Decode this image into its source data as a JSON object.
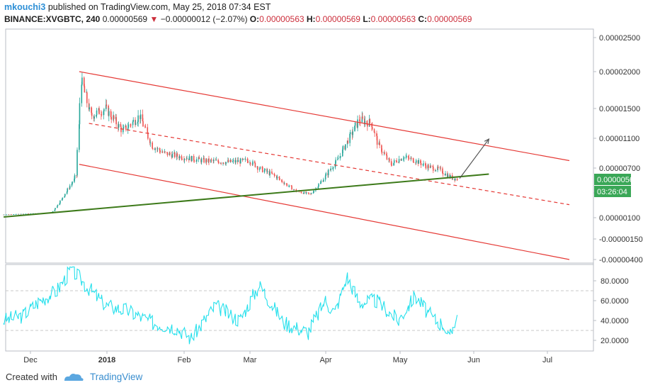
{
  "header": {
    "author": "mkouchi3",
    "published_text": "published on TradingView.com, May 25, 2018 07:34 EST",
    "symbol": "BINANCE:XVGBTC, 240",
    "last": "0.00000569",
    "change": "−0.00000012 (−2.07%)",
    "o_label": "O:",
    "o": "0.00000563",
    "h_label": "H:",
    "h": "0.00000569",
    "l_label": "L:",
    "l": "0.00000563",
    "c_label": "C:",
    "c": "0.00000569"
  },
  "footer": {
    "created_with": "Created with",
    "brand": "TradingView"
  },
  "colors": {
    "candle_up": "#26a69a",
    "candle_down": "#ef5350",
    "channel": "#e53935",
    "trendline": "#3d7a1a",
    "rsi": "#26e0ec",
    "price_badge": "#3aa757",
    "arrow": "#555555"
  },
  "chart_data": [
    {
      "type": "candlestick",
      "title": "BINANCE:XVGBTC, 240",
      "price_axis_labels": [
        "0.00002500",
        "0.00002000",
        "0.00001500",
        "0.00001100",
        "0.00000700",
        "0.0",
        "0.00000100",
        "-0.00000150",
        "-0.00000400"
      ],
      "time_axis_labels": [
        "Dec",
        "2018",
        "Feb",
        "Mar",
        "Apr",
        "May",
        "Jun",
        "Jul"
      ],
      "last_price_label": "0.00000569",
      "countdown_label": "03:26:04",
      "series": [
        {
          "name": "close",
          "x": [
            "2017-11-20",
            "2017-12-05",
            "2017-12-10",
            "2017-12-14",
            "2017-12-20",
            "2017-12-22",
            "2017-12-26",
            "2018-01-01",
            "2018-01-08",
            "2018-01-15",
            "2018-01-20",
            "2018-01-25",
            "2018-02-01",
            "2018-02-10",
            "2018-02-20",
            "2018-03-01",
            "2018-03-05",
            "2018-03-12",
            "2018-03-20",
            "2018-03-26",
            "2018-04-01",
            "2018-04-06",
            "2018-04-10",
            "2018-04-15",
            "2018-04-20",
            "2018-04-23",
            "2018-04-28",
            "2018-05-03",
            "2018-05-08",
            "2018-05-13",
            "2018-05-18",
            "2018-05-22",
            "2018-05-25"
          ],
          "values": [
            5.5e-07,
            7.5e-07,
            8e-07,
            2.8e-06,
            6.2e-06,
            1.9e-05,
            1.4e-05,
            1.5e-05,
            1.2e-05,
            1.4e-05,
            1e-05,
            9e-06,
            8.5e-06,
            8e-06,
            7.8e-06,
            8e-06,
            7e-06,
            6e-06,
            4e-06,
            3.5e-06,
            6e-06,
            8e-06,
            1.05e-05,
            1.35e-05,
            1.3e-05,
            1e-05,
            7.5e-06,
            8.5e-06,
            8e-06,
            7.2e-06,
            6.8e-06,
            6e-06,
            5.69e-06
          ]
        }
      ],
      "drawings": {
        "channel_upper": {
          "from": [
            "2017-12-21",
            2e-05
          ],
          "to": [
            "2018-07-10",
            8e-06
          ]
        },
        "channel_middle": {
          "from": [
            "2017-12-25",
            1.3e-05
          ],
          "to": [
            "2018-07-10",
            2e-06
          ]
        },
        "channel_lower": {
          "from": [
            "2017-12-21",
            7.5e-06
          ],
          "to": [
            "2018-07-10",
            -4e-06
          ]
        },
        "support_line": {
          "from": [
            "2017-11-20",
            2e-07
          ],
          "to": [
            "2018-06-07",
            6.3e-06
          ]
        },
        "projection_arrow": {
          "from": [
            "2018-05-26",
            5.8e-06
          ],
          "to": [
            "2018-06-07",
            1.09e-05
          ]
        }
      }
    },
    {
      "type": "line",
      "title": "RSI",
      "y_axis_labels": [
        "80.0000",
        "60.0000",
        "40.0000",
        "20.0000"
      ],
      "ylim": [
        10,
        96
      ],
      "reference_lines": [
        70,
        30
      ],
      "series": [
        {
          "name": "rsi",
          "x": [
            "2017-11-20",
            "2017-11-28",
            "2017-12-05",
            "2017-12-12",
            "2017-12-18",
            "2017-12-24",
            "2018-01-01",
            "2018-01-10",
            "2018-01-20",
            "2018-01-30",
            "2018-02-05",
            "2018-02-15",
            "2018-02-25",
            "2018-03-05",
            "2018-03-15",
            "2018-03-25",
            "2018-04-01",
            "2018-04-05",
            "2018-04-10",
            "2018-04-15",
            "2018-04-22",
            "2018-05-01",
            "2018-05-08",
            "2018-05-15",
            "2018-05-20",
            "2018-05-22",
            "2018-05-25"
          ],
          "values": [
            40,
            45,
            60,
            70,
            92,
            75,
            55,
            50,
            38,
            33,
            22,
            55,
            40,
            76,
            38,
            28,
            60,
            48,
            84,
            58,
            60,
            40,
            65,
            42,
            35,
            20,
            47
          ]
        }
      ]
    }
  ]
}
